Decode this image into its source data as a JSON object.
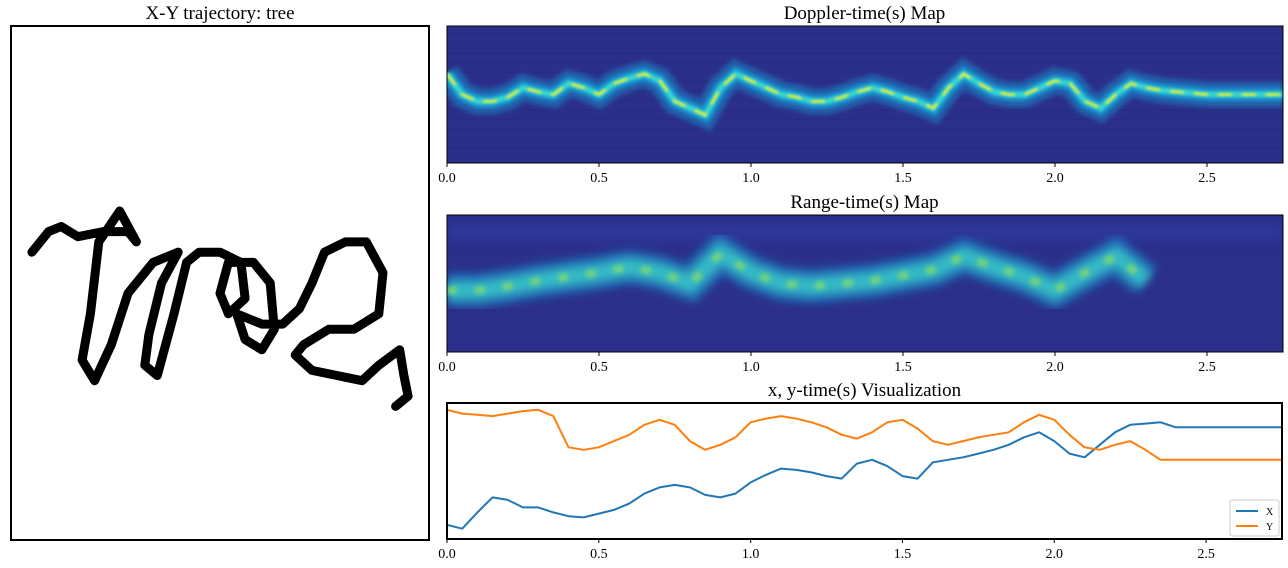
{
  "titles": {
    "trajectory": "X-Y trajectory: tree",
    "doppler": "Doppler-time(s) Map",
    "range": "Range-time(s) Map",
    "xy": "x, y-time(s) Visualization"
  },
  "colors": {
    "map_bg": "#2b2f8a",
    "map_dark": "#262a80",
    "cyan": "#18b5e6",
    "aqua": "#3ad6cc",
    "yellow": "#f3ee2f",
    "green": "#7fd870",
    "x_series": "#1f77b4",
    "y_series": "#ff7f0e",
    "ink": "#000000"
  },
  "chart_data": [
    {
      "type": "line",
      "title": "X-Y trajectory: tree",
      "axes_visible": false,
      "description_stroke": "handwritten cursive word rendered as thick black polyline",
      "strokes": [
        [
          [
            0.05,
            0.44
          ],
          [
            0.09,
            0.4
          ],
          [
            0.12,
            0.39
          ],
          [
            0.16,
            0.41
          ],
          [
            0.22,
            0.4
          ],
          [
            0.28,
            0.4
          ],
          [
            0.3,
            0.42
          ],
          [
            0.26,
            0.36
          ],
          [
            0.21,
            0.42
          ],
          [
            0.19,
            0.56
          ],
          [
            0.17,
            0.65
          ],
          [
            0.2,
            0.69
          ],
          [
            0.24,
            0.62
          ],
          [
            0.28,
            0.52
          ],
          [
            0.34,
            0.46
          ],
          [
            0.4,
            0.44
          ],
          [
            0.36,
            0.5
          ],
          [
            0.33,
            0.6
          ],
          [
            0.32,
            0.66
          ],
          [
            0.35,
            0.68
          ],
          [
            0.39,
            0.56
          ],
          [
            0.42,
            0.46
          ],
          [
            0.45,
            0.44
          ],
          [
            0.5,
            0.44
          ],
          [
            0.55,
            0.46
          ],
          [
            0.56,
            0.53
          ],
          [
            0.52,
            0.56
          ],
          [
            0.5,
            0.52
          ],
          [
            0.52,
            0.46
          ],
          [
            0.58,
            0.46
          ],
          [
            0.62,
            0.5
          ],
          [
            0.63,
            0.59
          ],
          [
            0.6,
            0.63
          ],
          [
            0.56,
            0.61
          ],
          [
            0.54,
            0.56
          ],
          [
            0.6,
            0.58
          ],
          [
            0.65,
            0.58
          ],
          [
            0.69,
            0.55
          ],
          [
            0.72,
            0.5
          ],
          [
            0.75,
            0.44
          ],
          [
            0.8,
            0.42
          ],
          [
            0.85,
            0.42
          ],
          [
            0.89,
            0.48
          ],
          [
            0.88,
            0.56
          ],
          [
            0.82,
            0.59
          ],
          [
            0.76,
            0.59
          ],
          [
            0.7,
            0.62
          ],
          [
            0.68,
            0.64
          ],
          [
            0.72,
            0.67
          ],
          [
            0.78,
            0.68
          ],
          [
            0.84,
            0.69
          ],
          [
            0.88,
            0.66
          ],
          [
            0.93,
            0.63
          ],
          [
            0.94,
            0.68
          ],
          [
            0.95,
            0.72
          ],
          [
            0.92,
            0.74
          ]
        ]
      ]
    },
    {
      "type": "heatmap",
      "title": "Doppler-time(s) Map",
      "xlabel": "",
      "ylabel": "",
      "xlim": [
        0.0,
        2.75
      ],
      "xticks": [
        "0.0",
        "0.5",
        "1.0",
        "1.5",
        "2.0",
        "2.5"
      ],
      "ridge_t": [
        0.0,
        0.05,
        0.1,
        0.15,
        0.2,
        0.25,
        0.3,
        0.35,
        0.4,
        0.45,
        0.5,
        0.55,
        0.6,
        0.65,
        0.7,
        0.75,
        0.8,
        0.85,
        0.9,
        0.95,
        1.0,
        1.05,
        1.1,
        1.15,
        1.2,
        1.25,
        1.3,
        1.35,
        1.4,
        1.45,
        1.5,
        1.55,
        1.6,
        1.65,
        1.7,
        1.75,
        1.8,
        1.85,
        1.9,
        1.95,
        2.0,
        2.05,
        2.1,
        2.15,
        2.2,
        2.25,
        2.3,
        2.35,
        2.4,
        2.45,
        2.5,
        2.55,
        2.6,
        2.65,
        2.7,
        2.75
      ],
      "ridge_v": [
        0.35,
        0.5,
        0.55,
        0.55,
        0.52,
        0.45,
        0.48,
        0.5,
        0.42,
        0.45,
        0.5,
        0.42,
        0.38,
        0.35,
        0.4,
        0.55,
        0.6,
        0.65,
        0.45,
        0.35,
        0.4,
        0.45,
        0.5,
        0.52,
        0.55,
        0.55,
        0.52,
        0.48,
        0.45,
        0.48,
        0.52,
        0.55,
        0.6,
        0.45,
        0.35,
        0.42,
        0.48,
        0.5,
        0.5,
        0.45,
        0.4,
        0.42,
        0.55,
        0.6,
        0.5,
        0.42,
        0.45,
        0.47,
        0.48,
        0.49,
        0.5,
        0.5,
        0.5,
        0.5,
        0.5,
        0.5
      ]
    },
    {
      "type": "heatmap",
      "title": "Range-time(s) Map",
      "xlabel": "",
      "ylabel": "",
      "xlim": [
        0.0,
        2.75
      ],
      "xticks": [
        "0.0",
        "0.5",
        "1.0",
        "1.5",
        "2.0",
        "2.5"
      ],
      "ridge_t": [
        0.0,
        0.1,
        0.2,
        0.3,
        0.4,
        0.5,
        0.6,
        0.7,
        0.8,
        0.9,
        1.0,
        1.1,
        1.2,
        1.3,
        1.4,
        1.5,
        1.6,
        1.7,
        1.8,
        1.9,
        2.0,
        2.1,
        2.2,
        2.3
      ],
      "ridge_v": [
        0.55,
        0.55,
        0.52,
        0.48,
        0.45,
        0.42,
        0.38,
        0.42,
        0.5,
        0.28,
        0.42,
        0.5,
        0.52,
        0.5,
        0.48,
        0.44,
        0.4,
        0.3,
        0.38,
        0.45,
        0.55,
        0.42,
        0.3,
        0.48
      ]
    },
    {
      "type": "line",
      "title": "x, y-time(s) Visualization",
      "xlabel": "",
      "ylabel": "",
      "xlim": [
        0.0,
        2.75
      ],
      "xticks": [
        "0.0",
        "0.5",
        "1.0",
        "1.5",
        "2.0",
        "2.5"
      ],
      "legend": "lower-right",
      "x": [
        0.0,
        0.05,
        0.1,
        0.15,
        0.2,
        0.25,
        0.3,
        0.35,
        0.4,
        0.45,
        0.5,
        0.55,
        0.6,
        0.65,
        0.7,
        0.75,
        0.8,
        0.85,
        0.9,
        0.95,
        1.0,
        1.05,
        1.1,
        1.15,
        1.2,
        1.25,
        1.3,
        1.35,
        1.4,
        1.45,
        1.5,
        1.55,
        1.6,
        1.65,
        1.7,
        1.75,
        1.8,
        1.85,
        1.9,
        1.95,
        2.0,
        2.05,
        2.1,
        2.15,
        2.2,
        2.25,
        2.3,
        2.35,
        2.4,
        2.5,
        2.6,
        2.7,
        2.75
      ],
      "series": [
        {
          "name": "X",
          "values": [
            0.08,
            0.05,
            0.18,
            0.3,
            0.28,
            0.22,
            0.22,
            0.18,
            0.15,
            0.14,
            0.17,
            0.2,
            0.25,
            0.33,
            0.38,
            0.4,
            0.38,
            0.32,
            0.3,
            0.33,
            0.42,
            0.48,
            0.53,
            0.52,
            0.5,
            0.47,
            0.45,
            0.57,
            0.6,
            0.55,
            0.47,
            0.45,
            0.58,
            0.6,
            0.62,
            0.65,
            0.68,
            0.72,
            0.78,
            0.82,
            0.75,
            0.65,
            0.62,
            0.72,
            0.82,
            0.88,
            0.89,
            0.9,
            0.86,
            0.86,
            0.86,
            0.86,
            0.86
          ]
        },
        {
          "name": "Y",
          "values": [
            1.0,
            0.97,
            0.96,
            0.95,
            0.97,
            0.99,
            1.0,
            0.95,
            0.7,
            0.68,
            0.7,
            0.75,
            0.8,
            0.88,
            0.92,
            0.88,
            0.75,
            0.68,
            0.72,
            0.78,
            0.9,
            0.93,
            0.95,
            0.93,
            0.9,
            0.86,
            0.8,
            0.77,
            0.82,
            0.9,
            0.92,
            0.85,
            0.75,
            0.72,
            0.75,
            0.78,
            0.8,
            0.82,
            0.9,
            0.96,
            0.92,
            0.8,
            0.7,
            0.68,
            0.72,
            0.75,
            0.68,
            0.6,
            0.6,
            0.6,
            0.6,
            0.6,
            0.6
          ]
        }
      ]
    }
  ]
}
